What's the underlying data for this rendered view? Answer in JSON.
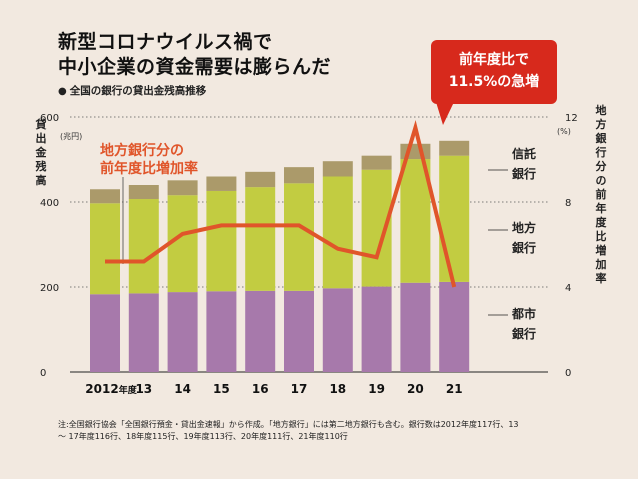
{
  "title_lines": [
    "新型コロナウイルス禍で",
    "中小企業の資金需要は膨らんだ"
  ],
  "subtitle": "全国の銀行の貸出金残高推移",
  "subtitle_icon": "bullet-dot",
  "callout_lines": [
    "前年度比で",
    "11.5%の急増"
  ],
  "note_lines": [
    "注:全国銀行協会「全国銀行預金・貸出金速報」から作成。「地方銀行」には第二地方銀行も含む。銀行数は2012年度117行、13",
    "〜 17年度116行、18年度115行、19年度113行、20年度111行、21年度110行"
  ],
  "colors": {
    "toshi": "#a779ab",
    "chiho": "#c2cc41",
    "shintaku": "#ab9a6a",
    "line": "#e0552a",
    "callout": "#d7291c",
    "background": "#f2e9e0"
  },
  "chart_data": {
    "type": "bar",
    "stacked": true,
    "categories": [
      "2012",
      "13",
      "14",
      "15",
      "16",
      "17",
      "18",
      "19",
      "20",
      "21"
    ],
    "first_category_suffix": "年度",
    "left_axis": {
      "label": "貸出金残高",
      "unit": "(兆円)",
      "ticks": [
        "0",
        "200",
        "400",
        "600"
      ],
      "ylim": [
        0,
        600
      ]
    },
    "right_axis": {
      "label": "地方銀行分の前年度比増加率",
      "unit": "(%)",
      "ticks": [
        "0",
        "4",
        "8",
        "12"
      ],
      "ylim": [
        0,
        12
      ]
    },
    "series": [
      {
        "name": "都市銀行",
        "axis": "left",
        "values": [
          183,
          185,
          188,
          190,
          191,
          191,
          197,
          201,
          210,
          212
        ]
      },
      {
        "name": "地方銀行",
        "axis": "left",
        "values": [
          214,
          222,
          228,
          236,
          244,
          253,
          263,
          275,
          291,
          297
        ]
      },
      {
        "name": "信託銀行",
        "axis": "left",
        "values": [
          33,
          33,
          35,
          34,
          36,
          38,
          36,
          33,
          36,
          35
        ]
      },
      {
        "name": "地方銀行分の前年度比増加率",
        "type": "line",
        "axis": "right",
        "values": [
          5.2,
          5.2,
          6.5,
          6.9,
          6.9,
          6.9,
          5.8,
          5.4,
          11.5,
          4.0
        ]
      }
    ],
    "line_label_lines": [
      "地方銀行分の",
      "前年度比増加率"
    ],
    "legend_position": "right",
    "grid": true
  }
}
